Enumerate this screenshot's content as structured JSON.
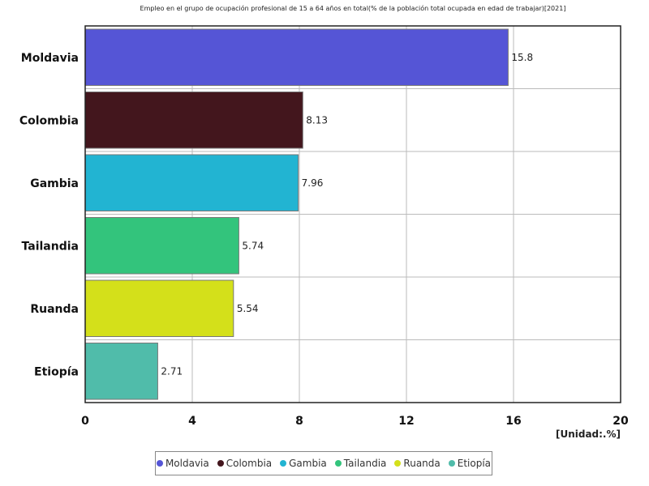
{
  "chart_data": {
    "type": "bar",
    "orientation": "horizontal",
    "title": "Empleo en el grupo de ocupación profesional de 15 a 64 años en total(% de la población total ocupada en edad de trabajar)[2021]",
    "categories": [
      "Moldavia",
      "Colombia",
      "Gambia",
      "Tailandia",
      "Ruanda",
      "Etiopía"
    ],
    "values": [
      15.8,
      8.13,
      7.96,
      5.74,
      5.54,
      2.71
    ],
    "value_labels": [
      "15.8",
      "8.13",
      "7.96",
      "5.74",
      "5.54",
      "2.71"
    ],
    "colors": [
      "#5555d6",
      "#43161d",
      "#22b4d2",
      "#33c47c",
      "#d4e01a",
      "#50bcaa"
    ],
    "xlim": [
      0,
      20
    ],
    "xticks": [
      "0",
      "4",
      "8",
      "12",
      "16",
      "20"
    ],
    "unit_label": "[Unidad:.%]",
    "grid": true,
    "legend_position": "bottom"
  }
}
